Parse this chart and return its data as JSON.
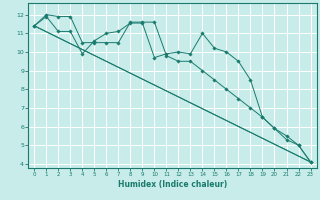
{
  "title": "",
  "xlabel": "Humidex (Indice chaleur)",
  "bg_color": "#c8ece9",
  "grid_color": "#ffffff",
  "line_color": "#1a7a6e",
  "xlim": [
    -0.5,
    23.5
  ],
  "ylim": [
    3.8,
    12.6
  ],
  "yticks": [
    4,
    5,
    6,
    7,
    8,
    9,
    10,
    11,
    12
  ],
  "xticks": [
    0,
    1,
    2,
    3,
    4,
    5,
    6,
    7,
    8,
    9,
    10,
    11,
    12,
    13,
    14,
    15,
    16,
    17,
    18,
    19,
    20,
    21,
    22,
    23
  ],
  "series_jagged": {
    "x": [
      0,
      1,
      2,
      3,
      4,
      5,
      6,
      7,
      8,
      9,
      10,
      11,
      12,
      13,
      14,
      15,
      16,
      17,
      18,
      19,
      20,
      21,
      22,
      23
    ],
    "y": [
      11.4,
      11.9,
      11.1,
      11.1,
      9.9,
      10.6,
      11.0,
      11.1,
      11.55,
      11.55,
      9.7,
      9.9,
      10.0,
      9.9,
      11.0,
      10.2,
      10.0,
      9.5,
      8.5,
      6.5,
      5.9,
      5.3,
      5.0,
      4.1
    ]
  },
  "series_smooth": {
    "x": [
      0,
      1,
      2,
      3,
      4,
      5,
      6,
      7,
      8,
      9,
      10,
      11,
      12,
      13,
      14,
      15,
      16,
      17,
      18,
      19,
      20,
      21,
      22,
      23
    ],
    "y": [
      11.4,
      12.0,
      11.9,
      11.9,
      10.5,
      10.5,
      10.5,
      10.5,
      11.6,
      11.6,
      11.6,
      9.8,
      9.5,
      9.5,
      9.0,
      8.5,
      8.0,
      7.5,
      7.0,
      6.5,
      5.9,
      5.5,
      5.0,
      4.1
    ]
  },
  "trend1": {
    "x": [
      0,
      23
    ],
    "y": [
      11.4,
      4.1
    ]
  },
  "trend2": {
    "x": [
      0,
      23
    ],
    "y": [
      11.4,
      4.1
    ]
  }
}
